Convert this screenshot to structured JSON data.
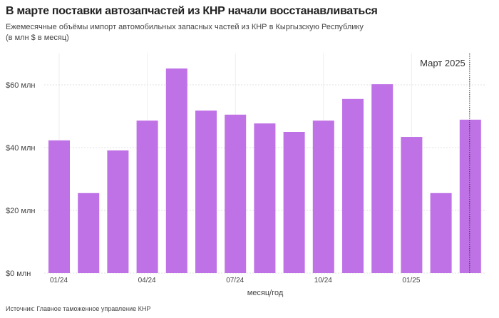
{
  "chart_data": {
    "type": "bar",
    "title": "В марте поставки автозапчастей из КНР начали восстанавливаться",
    "subtitle_line1": "Ежемесячные объёмы импорт автомобильных запасных частей из КНР в Кыргызскую Республику",
    "subtitle_line2": "(в млн $ в месяц)",
    "xlabel": "месяц/год",
    "ylabel": "",
    "categories": [
      "01/24",
      "02/24",
      "03/24",
      "04/24",
      "05/24",
      "06/24",
      "07/24",
      "08/24",
      "09/24",
      "10/24",
      "11/24",
      "12/24",
      "01/25",
      "02/25",
      "03/25"
    ],
    "x_tick_labels": {
      "0": "01/24",
      "3": "04/24",
      "6": "07/24",
      "9": "10/24",
      "12": "01/25"
    },
    "values": [
      42.3,
      25.5,
      39.1,
      48.6,
      65.2,
      51.8,
      50.5,
      47.7,
      45.0,
      48.6,
      55.5,
      60.2,
      43.4,
      25.5,
      48.9
    ],
    "ylim": [
      0,
      70
    ],
    "y_ticks": [
      0,
      20,
      40,
      60
    ],
    "y_tick_labels": [
      "$0 млн",
      "$20 млн",
      "$40 млн",
      "$60 млн"
    ],
    "annotation": {
      "label": "Март 2025",
      "category": "03/25"
    },
    "grid": true,
    "bar_color": "#bf72e6",
    "source": "Источник: Главное таможенное управление КНР"
  }
}
